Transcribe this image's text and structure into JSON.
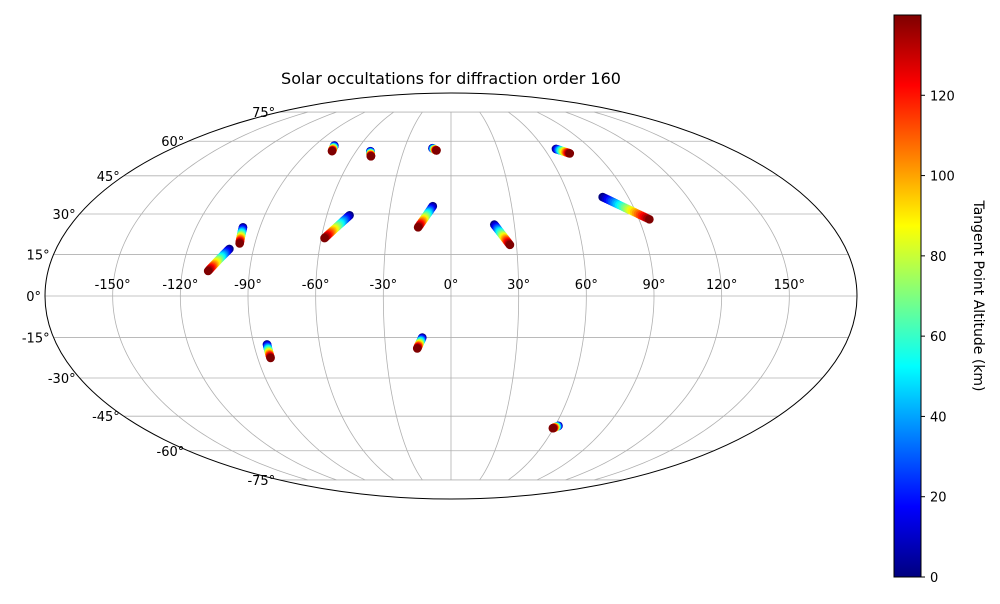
{
  "chart_data": {
    "type": "scatter",
    "projection": "mollweide",
    "title": "Solar occultations for diffraction order 160",
    "x_ticks": [
      "-150°",
      "-120°",
      "-90°",
      "-60°",
      "-30°",
      "0°",
      "30°",
      "60°",
      "90°",
      "120°",
      "150°"
    ],
    "y_ticks": [
      "-75°",
      "-60°",
      "-45°",
      "-30°",
      "-15°",
      "0°",
      "15°",
      "30°",
      "45°",
      "60°",
      "75°"
    ],
    "grid": true,
    "colorbar": {
      "label": "Tangent Point Altitude (km)",
      "colormap": "jet",
      "range": [
        0,
        140
      ],
      "ticks": [
        "0",
        "20",
        "40",
        "60",
        "80",
        "100",
        "120"
      ]
    },
    "altitude_range": [
      0,
      140
    ],
    "tracks": [
      {
        "start": [
          -77,
          58
        ],
        "end": [
          -75.3,
          55.5
        ]
      },
      {
        "start": [
          -51,
          55.5
        ],
        "end": [
          -48.9,
          53.2
        ]
      },
      {
        "start": [
          -12,
          56.8
        ],
        "end": [
          -9.2,
          55.8
        ]
      },
      {
        "start": [
          67.5,
          56.5
        ],
        "end": [
          74,
          54.5
        ]
      },
      {
        "start": [
          -98,
          25
        ],
        "end": [
          -97,
          19
        ]
      },
      {
        "start": [
          -101,
          17
        ],
        "end": [
          -108.5,
          9
        ]
      },
      {
        "start": [
          -49,
          29.5
        ],
        "end": [
          -58.5,
          21
        ]
      },
      {
        "start": [
          -9,
          33
        ],
        "end": [
          -15.5,
          25
        ]
      },
      {
        "start": [
          20.5,
          26
        ],
        "end": [
          27,
          18.5
        ]
      },
      {
        "start": [
          77,
          36.5
        ],
        "end": [
          95,
          28
        ]
      },
      {
        "start": [
          -84,
          -17.5
        ],
        "end": [
          -84,
          -22.5
        ]
      },
      {
        "start": [
          -13,
          -15
        ],
        "end": [
          -15.5,
          -19
        ]
      },
      {
        "start": [
          62,
          -49
        ],
        "end": [
          59.5,
          -50
        ]
      }
    ]
  },
  "colors": {
    "grid": "#b0b0b0",
    "frame": "#000000",
    "jet": [
      "#00007f",
      "#0000ff",
      "#007fff",
      "#00ffff",
      "#7fff7f",
      "#ffff00",
      "#ff7f00",
      "#ff0000",
      "#7f0000"
    ]
  }
}
